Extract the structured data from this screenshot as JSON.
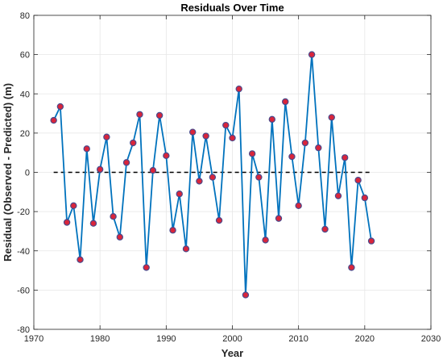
{
  "chart_data": {
    "type": "line",
    "title": "Residuals Over Time",
    "xlabel": "Year",
    "ylabel": "Residual (Observed - Predicted) (m)",
    "xlim": [
      1970,
      2030
    ],
    "ylim": [
      -80,
      80
    ],
    "x_ticks": [
      1970,
      1980,
      1990,
      2000,
      2010,
      2020,
      2030
    ],
    "y_ticks": [
      -80,
      -60,
      -40,
      -20,
      0,
      20,
      40,
      60,
      80
    ],
    "grid": true,
    "series": [
      {
        "x": [
          1973,
          1974,
          1975,
          1976,
          1977,
          1978,
          1979,
          1980,
          1981,
          1982,
          1983,
          1984,
          1985,
          1986,
          1987,
          1988,
          1989,
          1990,
          1991,
          1992,
          1993,
          1994,
          1995,
          1996,
          1997,
          1998,
          1999,
          2000,
          2001,
          2002,
          2003,
          2004,
          2005,
          2006,
          2007,
          2008,
          2009,
          2010,
          2011,
          2012,
          2013,
          2014,
          2015,
          2016,
          2017,
          2018,
          2019,
          2020,
          2021
        ],
        "values": [
          26.5,
          33.5,
          -25.5,
          -17,
          -44.5,
          12,
          -26,
          1.5,
          18,
          -22.5,
          -33,
          5,
          15,
          29.5,
          -48.5,
          1,
          29,
          8.5,
          -29.5,
          -11,
          -39,
          20.5,
          -4.5,
          18.5,
          -2.5,
          -24.5,
          24,
          17.5,
          42.5,
          -62.5,
          9.5,
          -2.5,
          -34.5,
          27,
          -23.5,
          36,
          8,
          -17,
          15,
          60,
          12.5,
          -29,
          28,
          -12,
          7.5,
          -48.5,
          -4,
          -13,
          -35
        ]
      }
    ],
    "zero_line": {
      "y": 0,
      "x_range": [
        1973,
        2021
      ]
    },
    "colors": {
      "line": "#0072BD",
      "marker_fill": "#D9253B",
      "marker_edge": "#4A4A8C",
      "zero_line": "#000000",
      "grid": "#E6E6E6",
      "axis": "#262626"
    }
  }
}
